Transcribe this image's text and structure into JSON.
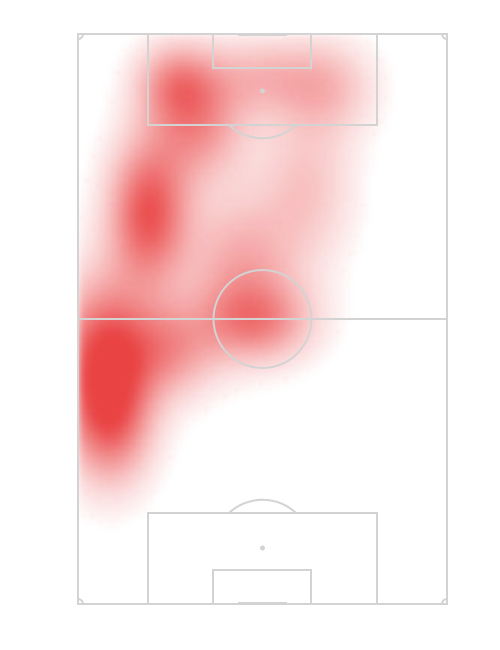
{
  "colors": {
    "background": "#ffffff",
    "pitch_lines": "#d3d3d3",
    "heat": "#e8393a"
  },
  "chart_data": {
    "type": "heatmap",
    "subject": "player-touch-heatmap-on-football-pitch",
    "orientation": "vertical-attacking-up",
    "pitch_length_m": 105,
    "pitch_width_m": 68,
    "legend": "none",
    "grid": false,
    "hotspots": [
      {
        "name": "left-wing-own-half",
        "x_m": 5,
        "y_m": 45,
        "intensity": 0.95,
        "spread_x_m": 6,
        "spread_y_m": 10
      },
      {
        "name": "left-channel-opp-half",
        "x_m": 13,
        "y_m": 72,
        "intensity": 0.9,
        "spread_x_m": 5,
        "spread_y_m": 9
      },
      {
        "name": "left-halfspace-deep",
        "x_m": 22,
        "y_m": 88,
        "intensity": 0.55,
        "spread_x_m": 6,
        "spread_y_m": 7
      },
      {
        "name": "box-edge-left",
        "x_m": 18,
        "y_m": 96,
        "intensity": 0.5,
        "spread_x_m": 5,
        "spread_y_m": 5
      },
      {
        "name": "penalty-area-center",
        "x_m": 34,
        "y_m": 97,
        "intensity": 0.35,
        "spread_x_m": 8,
        "spread_y_m": 5
      },
      {
        "name": "right-box-edge",
        "x_m": 46,
        "y_m": 95,
        "intensity": 0.3,
        "spread_x_m": 6,
        "spread_y_m": 6
      },
      {
        "name": "central-midfield",
        "x_m": 30,
        "y_m": 62,
        "intensity": 0.45,
        "spread_x_m": 7,
        "spread_y_m": 9
      },
      {
        "name": "center-circle",
        "x_m": 33,
        "y_m": 52,
        "intensity": 0.55,
        "spread_x_m": 7,
        "spread_y_m": 5
      },
      {
        "name": "left-wing-deep",
        "x_m": 6,
        "y_m": 33,
        "intensity": 0.55,
        "spread_x_m": 5,
        "spread_y_m": 8
      },
      {
        "name": "left-halfspace-own-half",
        "x_m": 17,
        "y_m": 47,
        "intensity": 0.5,
        "spread_x_m": 6,
        "spread_y_m": 6
      },
      {
        "name": "right-halfspace-forward",
        "x_m": 42,
        "y_m": 77,
        "intensity": 0.3,
        "spread_x_m": 6,
        "spread_y_m": 10
      }
    ]
  }
}
